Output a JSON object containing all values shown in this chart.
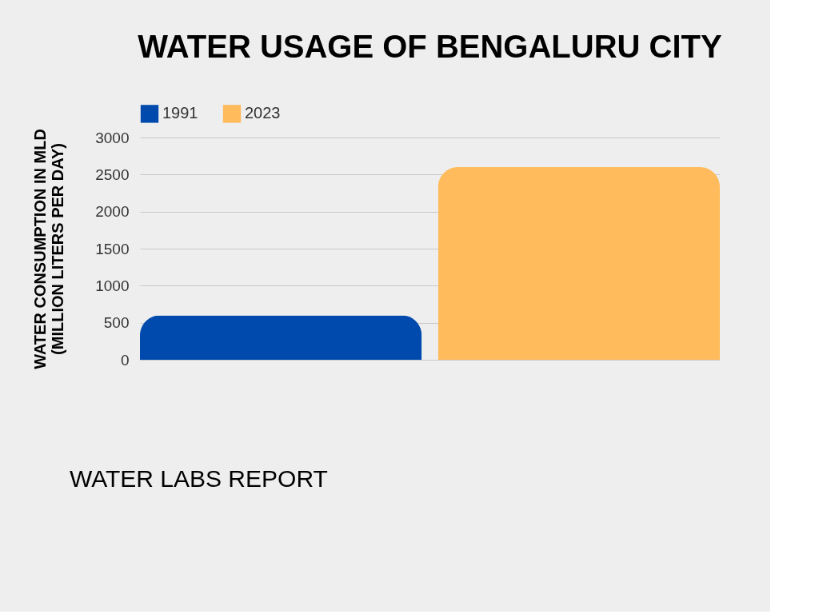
{
  "chart_data": {
    "type": "bar",
    "title": "WATER USAGE OF BENGALURU CITY",
    "ylabel": "WATER CONSUMPTION IN MLD\n(MILLION LITERS PER DAY)",
    "categories": [
      null
    ],
    "series": [
      {
        "name": "1991",
        "color": "#004aad",
        "values": [
          600
        ]
      },
      {
        "name": "2023",
        "color": "#ffbb5c",
        "values": [
          2600
        ]
      }
    ],
    "ylim": [
      0,
      3000
    ],
    "yticks": [
      0,
      500,
      1000,
      1500,
      2000,
      2500,
      3000
    ],
    "grid": "y",
    "legend": "top",
    "annotations": [
      "WATER LABS REPORT"
    ]
  }
}
